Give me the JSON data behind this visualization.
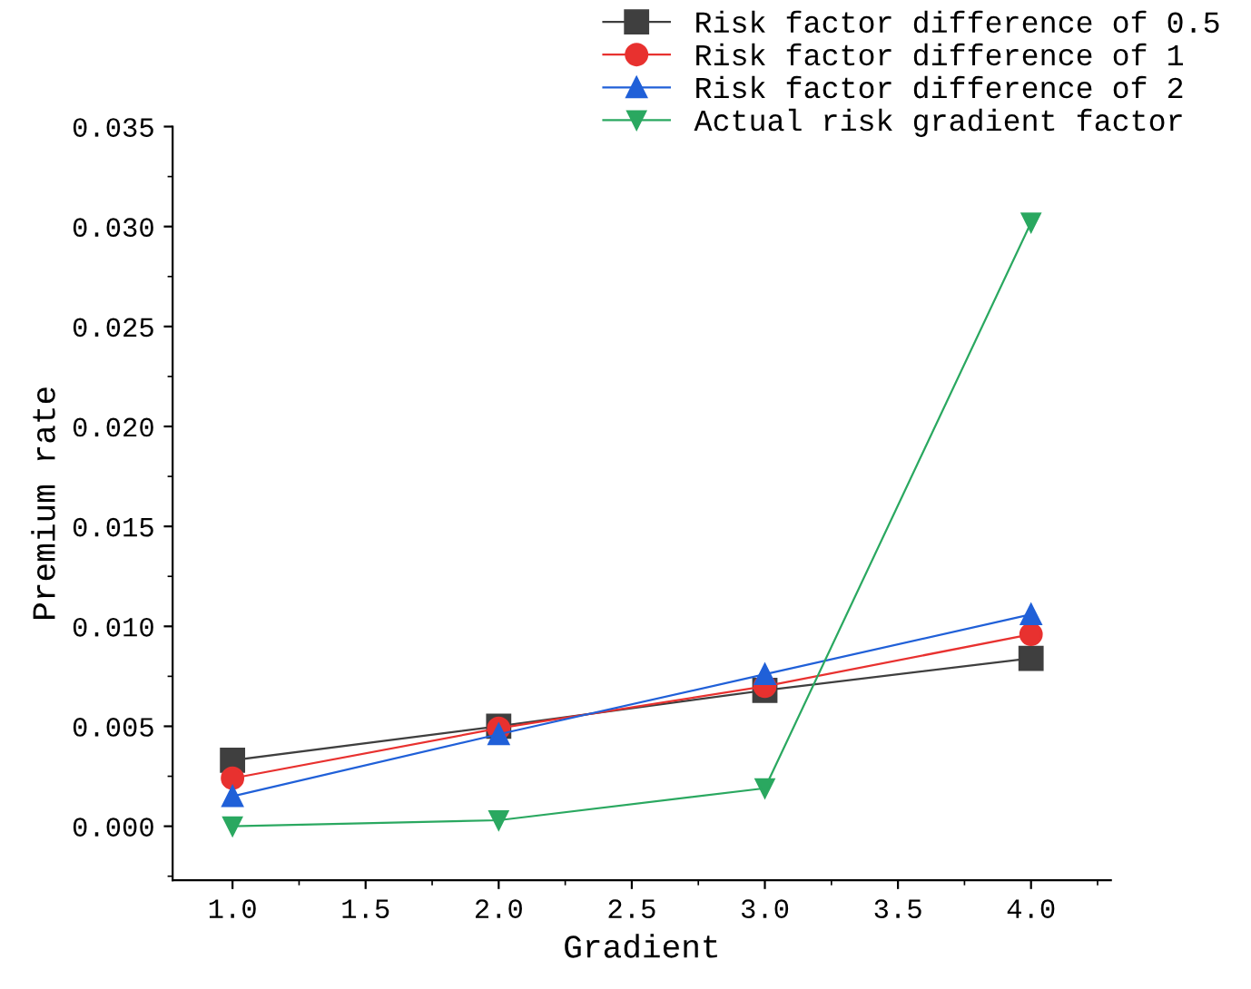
{
  "chart_data": {
    "type": "line",
    "xlabel": "Gradient",
    "ylabel": "Premium rate",
    "x": [
      1.0,
      2.0,
      3.0,
      4.0
    ],
    "xlim": [
      0.775,
      4.3
    ],
    "xticks": [
      {
        "value": 1,
        "label": "1.0"
      },
      {
        "value": 1.5,
        "label": "1.5"
      },
      {
        "value": 2,
        "label": "2.0"
      },
      {
        "value": 2.5,
        "label": "2.5"
      },
      {
        "value": 3,
        "label": "3.0"
      },
      {
        "value": 3.5,
        "label": "3.5"
      },
      {
        "value": 4,
        "label": "4.0"
      }
    ],
    "ylim": [
      -0.0027,
      0.035
    ],
    "yticks": [
      {
        "value": 0,
        "label": "0.000"
      },
      {
        "value": 0.005,
        "label": "0.005"
      },
      {
        "value": 0.01,
        "label": "0.010"
      },
      {
        "value": 0.015,
        "label": "0.015"
      },
      {
        "value": 0.02,
        "label": "0.020"
      },
      {
        "value": 0.025,
        "label": "0.025"
      },
      {
        "value": 0.03,
        "label": "0.030"
      },
      {
        "value": 0.035,
        "label": "0.035"
      }
    ],
    "grid": false,
    "legend": "top right",
    "line_style": "solid",
    "series": [
      {
        "name": "Risk factor difference of 0.5",
        "color": "#3f3f3f",
        "marker": "square",
        "values": [
          0.0033,
          0.005,
          0.0068,
          0.0084
        ]
      },
      {
        "name": "Risk factor difference of 1",
        "color": "#e8312f",
        "marker": "circle",
        "values": [
          0.0024,
          0.0049,
          0.007,
          0.0096
        ]
      },
      {
        "name": "Risk factor difference of 2",
        "color": "#2060d8",
        "marker": "triangle",
        "values": [
          0.0015,
          0.0046,
          0.0076,
          0.0106
        ]
      },
      {
        "name": "Actual risk gradient factor",
        "color": "#2aa860",
        "marker": "triangle_down",
        "values": [
          0.0,
          0.0003,
          0.0019,
          0.0302
        ]
      }
    ]
  }
}
